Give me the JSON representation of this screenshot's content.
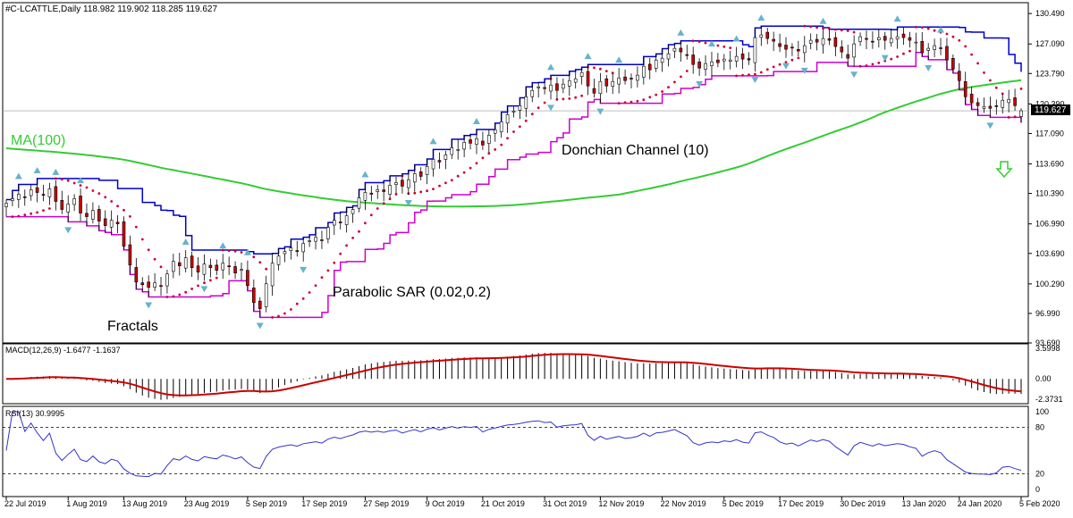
{
  "header": {
    "symbol_line": "#C-LCATTLE,Daily  118.982 119.902 118.285 119.627"
  },
  "colors": {
    "candle_up": "#ffffff",
    "candle_down": "#cc0000",
    "candle_outline": "#000000",
    "donchian_upper": "#0000cc",
    "donchian_lower": "#cc00cc",
    "ma": "#33cc33",
    "sar": "#cc0033",
    "fractal": "#66b3cc",
    "macd_hist": "#000000",
    "macd_signal": "#cc0000",
    "rsi": "#3333cc",
    "arrow": "#33cc33"
  },
  "annotations": {
    "ma_label": "MA(100)",
    "donchian_label": "Donchian Channel (10)",
    "sar_label": "Parabolic SAR (0.02,0.2)",
    "fractals_label": "Fractals",
    "signal_arrow": "down-arrow-icon"
  },
  "chart_data": [
    {
      "type": "candlestick",
      "title": "#C-LCATTLE,Daily",
      "ohlc_last": {
        "open": 118.982,
        "high": 119.902,
        "low": 118.285,
        "close": 119.627
      },
      "current_price_label": "119.627",
      "ylim": [
        93.69,
        131.7
      ],
      "y_ticks": [
        "130.490",
        "127.090",
        "123.790",
        "120.390",
        "117.090",
        "113.690",
        "110.390",
        "106.990",
        "103.690",
        "100.290",
        "96.990",
        "93.690"
      ],
      "x_ticks": [
        "22 Jul 2019",
        "1 Aug 2019",
        "13 Aug 2019",
        "23 Aug 2019",
        "5 Sep 2019",
        "17 Sep 2019",
        "27 Sep 2019",
        "9 Oct 2019",
        "21 Oct 2019",
        "31 Oct 2019",
        "12 Nov 2019",
        "22 Nov 2019",
        "5 Dec 2019",
        "17 Dec 2019",
        "30 Dec 2019",
        "13 Jan 2020",
        "24 Jan 2020",
        "5 Feb 2020"
      ],
      "close": [
        109.3,
        109.8,
        110.3,
        110.0,
        110.8,
        110.5,
        110.2,
        110.9,
        109.5,
        108.6,
        109.2,
        109.8,
        108.2,
        107.8,
        108.5,
        107.3,
        106.8,
        107.4,
        107.0,
        104.5,
        102.4,
        100.5,
        100.2,
        99.9,
        100.4,
        100.0,
        101.4,
        102.8,
        102.3,
        103.2,
        102.1,
        101.6,
        102.5,
        102.1,
        101.8,
        102.6,
        102.2,
        101.5,
        101.9,
        100.1,
        98.2,
        97.5,
        100.3,
        102.6,
        103.4,
        103.9,
        104.3,
        103.9,
        104.8,
        105.1,
        105.5,
        105.2,
        106.6,
        107.4,
        107.1,
        107.9,
        108.6,
        109.9,
        110.5,
        110.3,
        110.8,
        110.6,
        111.3,
        111.6,
        111.2,
        111.9,
        112.6,
        112.3,
        113.4,
        114.2,
        113.9,
        114.7,
        115.5,
        115.3,
        116.1,
        116.0,
        116.5,
        115.8,
        116.9,
        117.5,
        118.4,
        119.2,
        119.6,
        120.2,
        121.2,
        121.9,
        122.3,
        122.1,
        122.5,
        121.9,
        122.6,
        123.0,
        123.2,
        123.9,
        122.4,
        121.6,
        122.9,
        122.4,
        122.9,
        123.3,
        123.0,
        123.2,
        123.6,
        124.6,
        124.2,
        125.3,
        125.5,
        126.0,
        126.6,
        126.2,
        125.8,
        124.8,
        124.4,
        124.9,
        125.1,
        125.0,
        125.4,
        125.3,
        125.7,
        125.4,
        125.3,
        127.8,
        128.1,
        127.7,
        127.4,
        126.8,
        126.5,
        126.7,
        126.3,
        126.9,
        127.5,
        127.3,
        127.7,
        127.5,
        126.8,
        126.2,
        125.5,
        127.1,
        127.9,
        127.6,
        127.3,
        127.8,
        127.5,
        127.7,
        127.9,
        127.8,
        127.5,
        127.3,
        126.1,
        126.6,
        126.9,
        126.6,
        125.3,
        124.3,
        123.0,
        121.2,
        120.5,
        120.2,
        120.1,
        119.9,
        120.1,
        120.8,
        120.9,
        120.2,
        119.627
      ]
    },
    {
      "type": "line",
      "title": "MACD(12,26,9) -1.6477 -1.1637",
      "y_ticks": [
        "3.5998",
        "0.00",
        "-2.3731"
      ],
      "ylim": [
        -2.9,
        4.1
      ]
    },
    {
      "type": "line",
      "title": "RSI(13) 30.9995",
      "y_ticks": [
        "100",
        "80",
        "20",
        "0"
      ],
      "ylim": [
        0,
        100
      ],
      "levels": [
        80,
        20
      ]
    }
  ]
}
